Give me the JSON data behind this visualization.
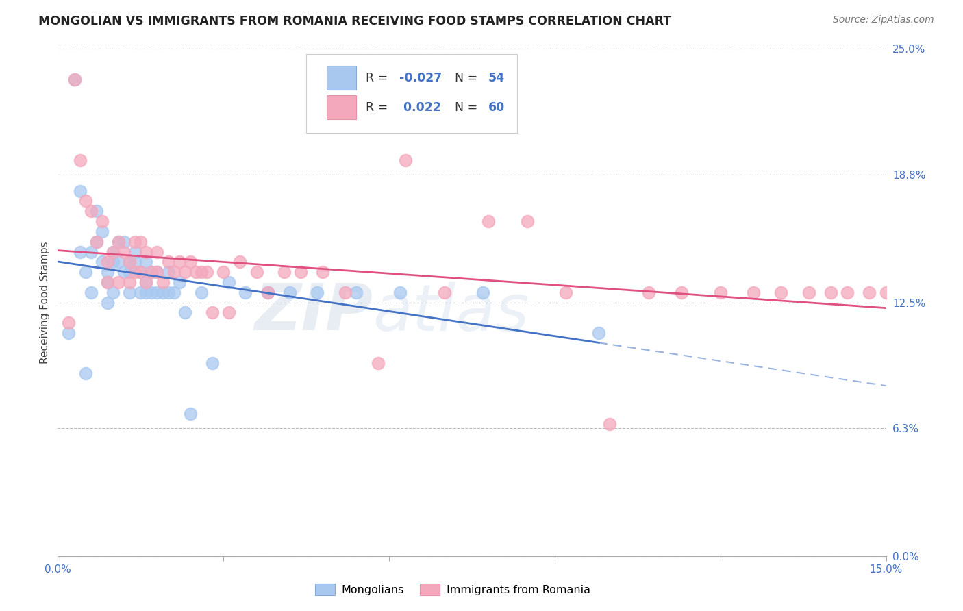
{
  "title": "MONGOLIAN VS IMMIGRANTS FROM ROMANIA RECEIVING FOOD STAMPS CORRELATION CHART",
  "source": "Source: ZipAtlas.com",
  "ylabel": "Receiving Food Stamps",
  "xlim": [
    0.0,
    0.15
  ],
  "ylim": [
    0.0,
    0.25
  ],
  "ytick_vals": [
    0.0,
    0.063,
    0.125,
    0.188,
    0.25
  ],
  "ytick_labels": [
    "0.0%",
    "6.3%",
    "12.5%",
    "18.8%",
    "25.0%"
  ],
  "xtick_vals": [
    0.0,
    0.03,
    0.06,
    0.09,
    0.12,
    0.15
  ],
  "xtick_labels": [
    "0.0%",
    "",
    "",
    "",
    "",
    "15.0%"
  ],
  "legend_mongolian": "Mongolians",
  "legend_romania": "Immigrants from Romania",
  "color_mongolian": "#a8c8f0",
  "color_romania": "#f4a8bc",
  "color_line_mongolian": "#4472c4",
  "color_line_romania": "#e05080",
  "watermark_zip": "ZIP",
  "watermark_atlas": "atlas",
  "mongo_x": [
    0.002,
    0.003,
    0.004,
    0.004,
    0.005,
    0.005,
    0.006,
    0.006,
    0.007,
    0.007,
    0.008,
    0.008,
    0.009,
    0.009,
    0.009,
    0.01,
    0.01,
    0.01,
    0.011,
    0.011,
    0.012,
    0.012,
    0.013,
    0.013,
    0.013,
    0.014,
    0.014,
    0.015,
    0.015,
    0.016,
    0.016,
    0.016,
    0.017,
    0.017,
    0.018,
    0.018,
    0.019,
    0.02,
    0.02,
    0.021,
    0.022,
    0.023,
    0.024,
    0.026,
    0.028,
    0.031,
    0.034,
    0.038,
    0.042,
    0.047,
    0.054,
    0.062,
    0.077,
    0.098
  ],
  "mongo_y": [
    0.11,
    0.235,
    0.18,
    0.15,
    0.14,
    0.09,
    0.15,
    0.13,
    0.17,
    0.155,
    0.16,
    0.145,
    0.14,
    0.135,
    0.125,
    0.15,
    0.145,
    0.13,
    0.155,
    0.145,
    0.155,
    0.14,
    0.145,
    0.14,
    0.13,
    0.15,
    0.145,
    0.14,
    0.13,
    0.145,
    0.135,
    0.13,
    0.14,
    0.13,
    0.14,
    0.13,
    0.13,
    0.14,
    0.13,
    0.13,
    0.135,
    0.12,
    0.07,
    0.13,
    0.095,
    0.135,
    0.13,
    0.13,
    0.13,
    0.13,
    0.13,
    0.13,
    0.13,
    0.11
  ],
  "romania_x": [
    0.002,
    0.003,
    0.004,
    0.005,
    0.006,
    0.007,
    0.008,
    0.009,
    0.009,
    0.01,
    0.011,
    0.011,
    0.012,
    0.013,
    0.013,
    0.014,
    0.014,
    0.015,
    0.015,
    0.016,
    0.016,
    0.017,
    0.018,
    0.018,
    0.019,
    0.02,
    0.021,
    0.022,
    0.023,
    0.024,
    0.025,
    0.026,
    0.027,
    0.028,
    0.03,
    0.031,
    0.033,
    0.036,
    0.038,
    0.041,
    0.044,
    0.048,
    0.052,
    0.058,
    0.063,
    0.07,
    0.078,
    0.085,
    0.092,
    0.1,
    0.107,
    0.113,
    0.12,
    0.126,
    0.131,
    0.136,
    0.14,
    0.143,
    0.147,
    0.15
  ],
  "romania_y": [
    0.115,
    0.235,
    0.195,
    0.175,
    0.17,
    0.155,
    0.165,
    0.145,
    0.135,
    0.15,
    0.155,
    0.135,
    0.15,
    0.145,
    0.135,
    0.155,
    0.14,
    0.155,
    0.14,
    0.15,
    0.135,
    0.14,
    0.15,
    0.14,
    0.135,
    0.145,
    0.14,
    0.145,
    0.14,
    0.145,
    0.14,
    0.14,
    0.14,
    0.12,
    0.14,
    0.12,
    0.145,
    0.14,
    0.13,
    0.14,
    0.14,
    0.14,
    0.13,
    0.095,
    0.195,
    0.13,
    0.165,
    0.165,
    0.13,
    0.065,
    0.13,
    0.13,
    0.13,
    0.13,
    0.13,
    0.13,
    0.13,
    0.13,
    0.13,
    0.13
  ]
}
